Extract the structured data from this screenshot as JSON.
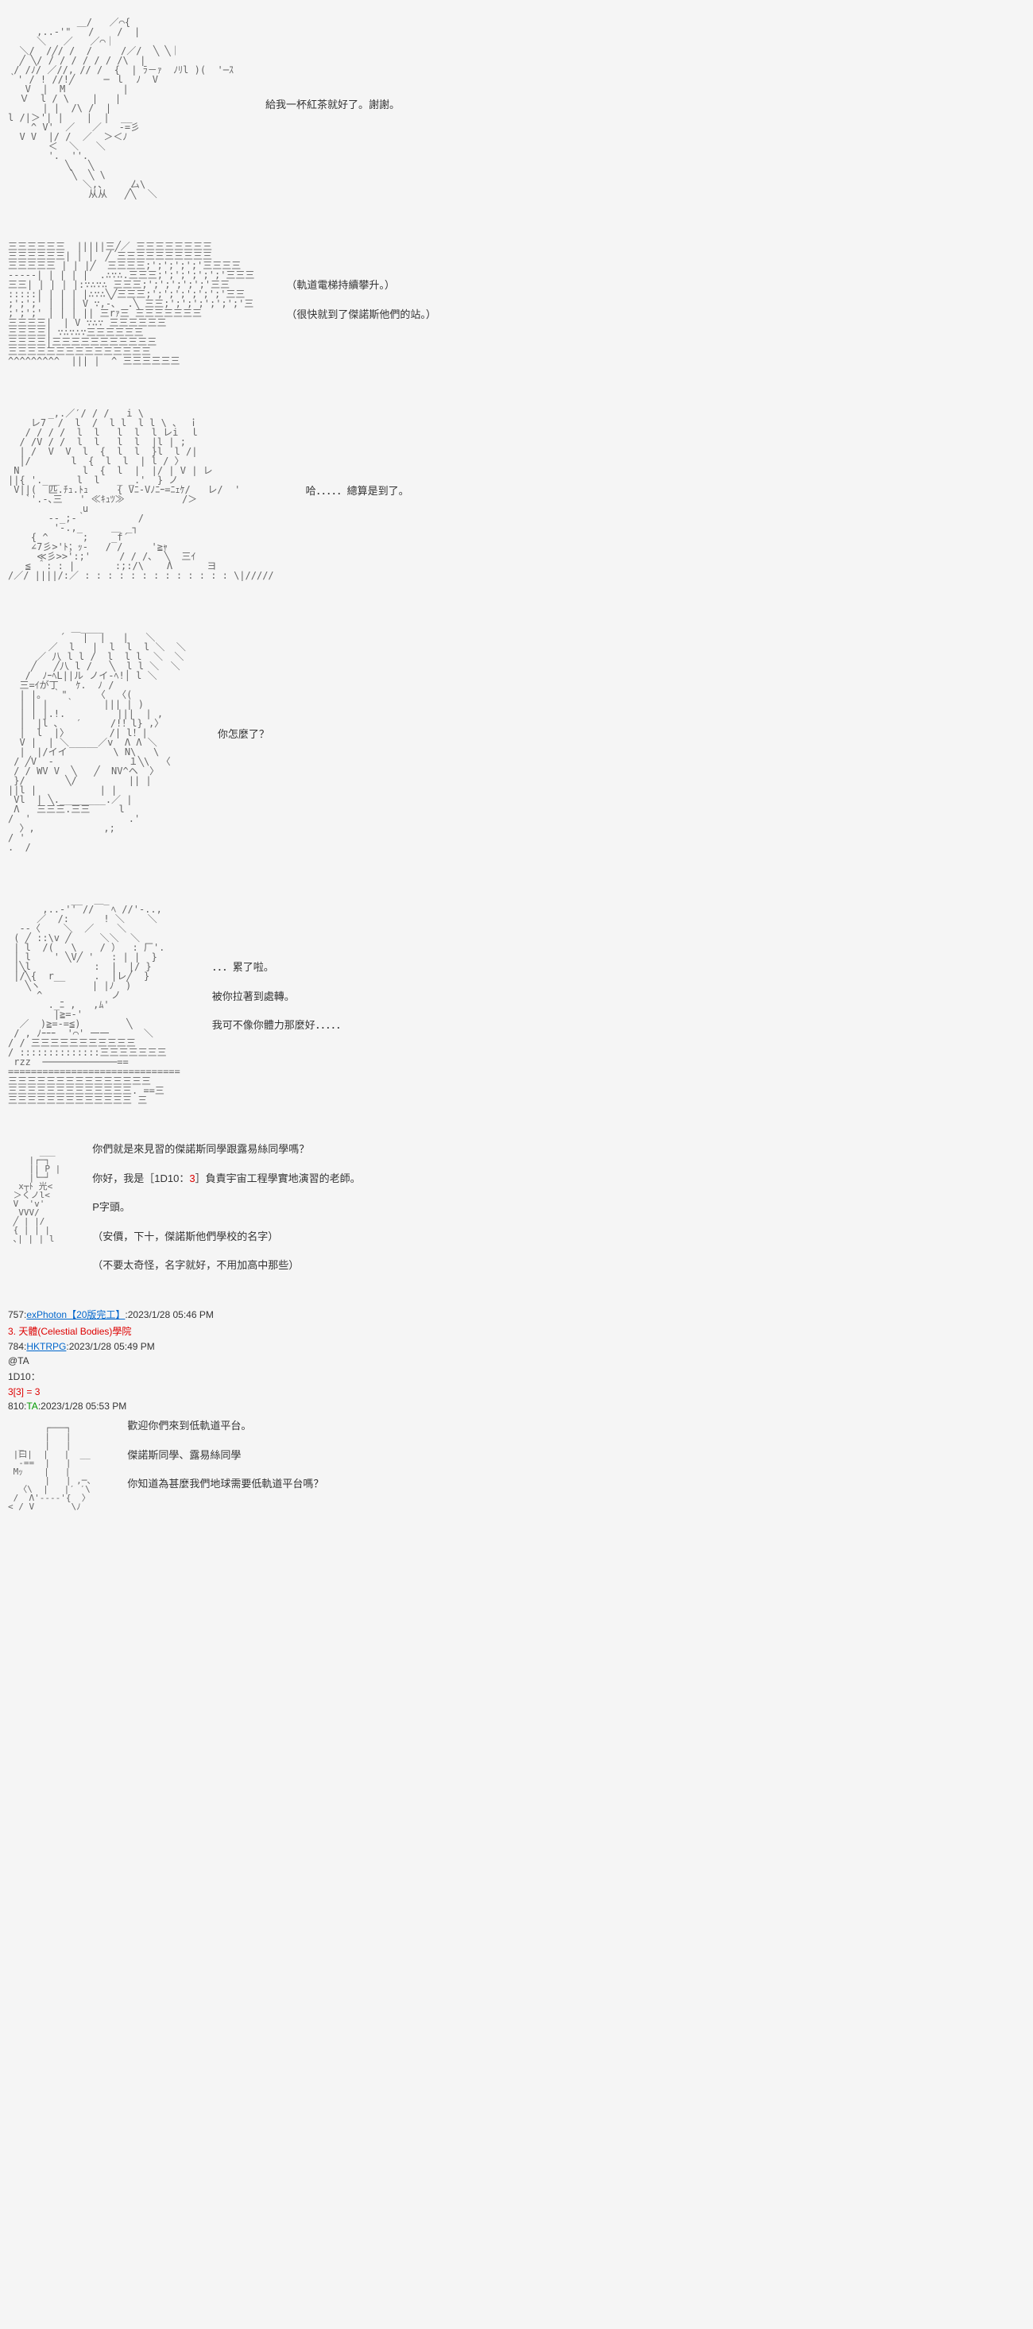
{
  "panels": [
    {
      "ascii": "            ＿/   ／⌒{\n     ,..‐'\"   /    /  |\n     ＼   ／   ／⌒｜\n  ＼/  /╱/ /  /     /／/  ╲ ╲｜\n  ╱ ╲/ / / / / / / /\\  |\n / /ﾉ/ ／//, // /  {  | ﾗ－ｧ  ﾉﾘl )(  '─ｽ\n｀' / ! //!╱     ─ ｌ  ﾉ  V\n   V  |  M          |\n  Ｖ  l / \\    |   |\n      | |  /\\ /  |\nl /|＞'| |    |  |  __\n    ^ V'  ／   ／   -=彡\n  V V  |/ /  ／  ＞＜ﾉ\n       ＜  ＼   ＼\n       '.  ''.\n          ╲   ╲\n           ╲  ╲ \\\n             ＼,、    厶\\\n              从从   ╱╲  ＼",
      "lines": [
        "給我一杯紅茶就好了。謝謝。"
      ]
    },
    {
      "ascii": "三三三三三三  |||||三╱／ 三三三三三三三三\n三三三三三三| | |  ╱ 三三三三三三三三三三\n三三三三三 | | |╱  三三三三;';';';';'三三三三\n-----| | | | |  .∴∵∴.三三三;';';';';';'三三三\n三三| | | | |:∵∴∵∴ 三三三;';';';';';'三三\n:::::| | | | |∴∵∴╲╱三三三;';';';';';';'三三\n;';';' | | | V ∵,-､  .╲ 三三;';';';';';';'三\n;';';' | | | || 三rｧ三 三三三三三三三\n三三三三|  | V ∵∴∵ 三三三三三三\n三三三三| ∵∴∵∴∵三三三三三三\n三三三三|三三三三三三三三三三三\n三三三三三三三三三三三三三三三\n^^^^^^^^^  ||| |  ^ 三三三三三三",
      "lines": [
        "（軌道電梯持續攀升。）",
        "（很快就到了傑諾斯他們的站。）"
      ]
    },
    {
      "ascii": "       _,.／′/ / /   i \\\n    レ7  /  l  /  l l  l l \\ ､  ｉ\n   / / / /  l  l   l  l  l レi  ｌ\n  / /V / /  l  l   l  l  |l | ;\n  | /  V  V  l  {  l  l  }l  l /|\n  |/       l  {  l  l  | l / 〉\n N           l  {  l  |  |/ | V | レ\n||{ '._ _   l  l   _ _.'  } ノ\n V||(  匹.ﾁｭ.ﾄｭ     { Vﾆ-Vﾉﾆｰ=ﾆｪｹ/   レ/  '\n   `'.-､三   ' ≪ｷｭﾂ≫          /＞\n             u\n       --_;-｀         /\n        '-.,_     ＿ _┐\n    { ^      ;    _f´\n    ∠7彡>'ﾄ；ｯ-   / /     '≧ｬ\n     ≪彡>>':;'     / / /､  ╲  三ｲ\n   ≦ ＾: : |       :;:/\\    Λ      ヨ\n/／/ ||||/:／ : : : : : : : : : : : : : \\|/////",
      "lines": [
        "哈．．．．．總算是到了。"
      ]
    },
    {
      "ascii": "           ＿____\n         ´   |  |   |   ＼\n       ／  l   |  l  l  l ＼  ＼\n     ／ 八 l l /  l  l l  ＼  ＼\n    ╱   ╱八 l /   ╲  l l ＼  ＼\n   /  ﾉｰﾍL||ル ノイ-ﾍ!│ l ＼\n  三=ｲが丁   ｹ.  ﾉ /\n  | |。 ｀\"     〈  〈(\n  | | |   ｀     ||| | )\n  | | |.!.         |||  | ,\n  |  |l ､   ′     /!！l} ,〉\n  |  l  |〉       /| l！|\n  V |  | ＼_____／v  Λ Λ ＼\n  |  |/イイ        \\ N\\   \\\n / ╱V  -             １╲\\  〈\n / / WV V  ╲   ╱  NV^ヘ  〉\n }/       ╲/         || |\n||l |           | |\n Vl  | ╲.________.／ |\n Λ   三三三.三三     l\n/  '                 .'\n  〉,            ,;\n/ '\n.  /",
      "lines": [
        "你怎麼了？"
      ]
    },
    {
      "ascii": "           __  ＿_\n      ,..‐'' //   ﾍ //'‐..,\n     ／  /:      ! ＼    ＼\n  --〈    ＼  ／    ＼\n ( ╱ ::\\v ╱     ＼＼  ＼\n | l  /(   \\    / ）  : 厂'.\n | l    ' ╲V╱ '   : | |  }\n |╲l           :  |  |/ }\n |/╲{  r__     .  |レ╱  }\n   ╲ヽ         | |ﾉ  )\n     ^            ノ\n       ._ﾆ ,   ,ﾑ'\n        |≧=-'\n  ／  )≧=-=≦)        ╲\n / , ﾉｰｰｰ  '⌒' 一一      ＼\n/ / 三三三三三三三三三三三\n/ ::::::::::::::三三三三三三三\n rzz  ─────────────==\n==============================\n三三三三三三三三三三三三三三三\n三三三三三三三三三三三三三. ==三\n三三三三三三三三三三三三三 三",
      "lines": [
        "．．．累了啦。",
        "被你拉著到處轉。",
        "我可不像你體力那麼好．．．．．"
      ]
    },
    {
      "ascii": "      ___\n    |┌─┐\n    || P |\n    |└─┘\n  x┬ﾄ 光<\n ＞くノl<\n V  'v'\n  VVV/\n ╱ | |/\n { | | |\n ､| | | l",
      "lines": [
        "你們就是來見習的傑諾斯同學跟露易絲同學嗎？",
        "你好，我是［1D10：3］負責宇宙工程學實地演習的老師。",
        "P字頭。",
        "",
        "（安價，下十，傑諾斯他們學校的名字）",
        "（不要太奇怪，名字就好，不用加高中那些）"
      ]
    }
  ],
  "meta": {
    "post757": {
      "id": "757:",
      "user": "exPhoton【20版完工】",
      "ts": ":2023/1/28 05:46 PM"
    },
    "school": "3. 天體(Celestial Bodies)學院",
    "post784": {
      "id": "784:",
      "user": "HKTRPG",
      "ts": ":2023/1/28 05:49 PM"
    },
    "mention": "@TA",
    "dice": "1D10：",
    "diceResult": "3[3] = 3",
    "post810": {
      "id": "810:",
      "user": "TA",
      "ts": ":2023/1/28 05:53 PM"
    }
  },
  "panel7": {
    "ascii": "       ┌───┐\n       |   |\n  _    |   |\n |曰|  |   |  __\n  -==  |   |\n Mｯ    |   |\n       |   | ,─、\n  〈\\  |   |′ ′\\\n /  Λ'----'{  〉\n< / V       \\ﾉ",
    "lines": [
      "歡迎你們來到低軌道平台。",
      "傑諾斯同學、露易絲同學",
      "你知道為甚麼我們地球需要低軌道平台嗎？"
    ]
  }
}
